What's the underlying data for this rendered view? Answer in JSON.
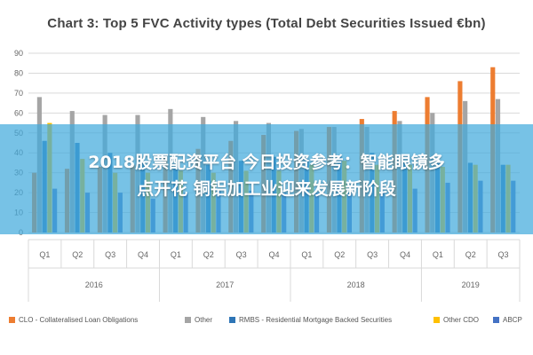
{
  "chart_data": {
    "type": "bar",
    "title": "Chart 3: Top 5 FVC Activity types (Total Debt Securities Issued €bn)",
    "ylim": [
      0,
      90
    ],
    "yticks": [
      0,
      10,
      20,
      30,
      40,
      50,
      60,
      70,
      80,
      90
    ],
    "grid": true,
    "legend_position": "bottom",
    "categories": [
      "Q1",
      "Q2",
      "Q3",
      "Q4",
      "Q1",
      "Q2",
      "Q3",
      "Q4",
      "Q1",
      "Q2",
      "Q3",
      "Q4",
      "Q1",
      "Q2",
      "Q3"
    ],
    "year_groups": [
      {
        "label": "2016",
        "start": 0,
        "end": 3
      },
      {
        "label": "2017",
        "start": 4,
        "end": 7
      },
      {
        "label": "2018",
        "start": 8,
        "end": 11
      },
      {
        "label": "2019",
        "start": 12,
        "end": 14
      }
    ],
    "series": [
      {
        "name": "CLO - Collateralised Loan Obligations",
        "color": "#ed7d31",
        "values": [
          30,
          32,
          33,
          34,
          38,
          42,
          46,
          49,
          51,
          53,
          57,
          61,
          68,
          76,
          83
        ]
      },
      {
        "name": "Other",
        "color": "#a5a5a5",
        "values": [
          68,
          61,
          59,
          59,
          62,
          58,
          56,
          55,
          52,
          53,
          53,
          56,
          60,
          66,
          67
        ]
      },
      {
        "name": "RMBS - Residential Mortgage Backed Securities",
        "color": "#2e75b6",
        "values": [
          46,
          45,
          40,
          36,
          33,
          34,
          36,
          38,
          37,
          39,
          40,
          36,
          35,
          35,
          34
        ]
      },
      {
        "name": "Other CDO",
        "color": "#ffc000",
        "values": [
          55,
          37,
          30,
          30,
          31,
          30,
          31,
          31,
          34,
          36,
          34,
          34,
          33,
          34,
          34
        ]
      },
      {
        "name": "ABCP",
        "color": "#4472c4",
        "values": [
          22,
          20,
          20,
          17,
          20,
          21,
          21,
          20,
          20,
          20,
          21,
          22,
          25,
          26,
          26
        ]
      }
    ]
  },
  "overlay": {
    "line1": "2018股票配资平台 今日投资参考：智能眼镜多",
    "line2": "点开花 铜铝加工业迎来发展新阶段"
  }
}
